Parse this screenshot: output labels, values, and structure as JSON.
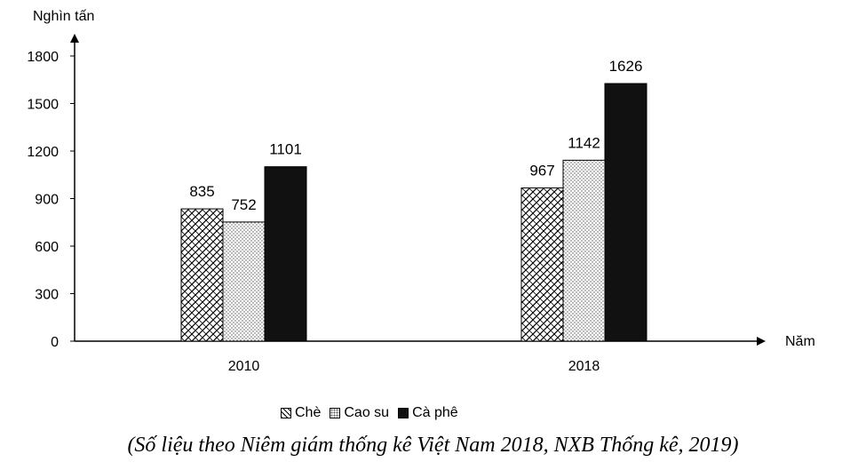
{
  "chart_data": {
    "type": "bar",
    "categories": [
      "2010",
      "2018"
    ],
    "series": [
      {
        "name": "Chè",
        "values": [
          835,
          967
        ],
        "pattern": "crosshatch",
        "color": "#000000"
      },
      {
        "name": "Cao su",
        "values": [
          752,
          1142
        ],
        "pattern": "dots",
        "color": "#888888"
      },
      {
        "name": "Cà phê",
        "values": [
          1101,
          1626
        ],
        "pattern": "solid",
        "color": "#111111"
      }
    ],
    "ylabel": "Nghìn tấn",
    "xlabel": "Năm",
    "ylim": [
      0,
      1800
    ],
    "yticks": [
      0,
      300,
      600,
      900,
      1200,
      1500,
      1800
    ],
    "grid": false,
    "legend_position": "bottom"
  },
  "source_note": "(Số liệu theo Niêm giám thống kê Việt Nam 2018, NXB Thống kê, 2019)"
}
